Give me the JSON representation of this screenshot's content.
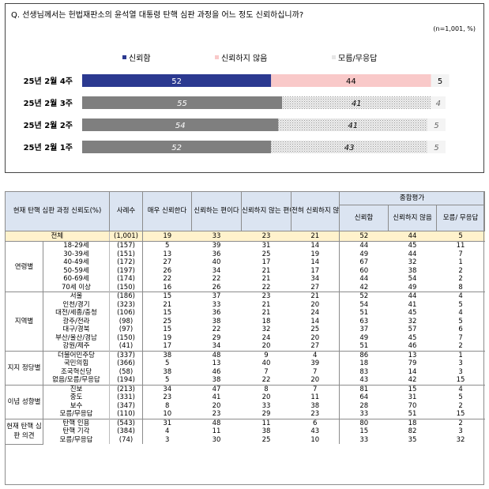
{
  "question": "Q. 선생님께서는 헌법재판소의 윤석열 대통령 탄핵 심판 과정을 어느 정도 신뢰하십니까?",
  "sample_note": "(n=1,001, %)",
  "colors": {
    "trust_current": "#2b3990",
    "distrust_current": "#f9c9c9",
    "unknown_current": "#f3f3f3",
    "trust_past": "#7f7f7f",
    "distrust_past": "#d9d9d9",
    "header_bg": "#dbe4f1",
    "total_bg": "#fff2cc"
  },
  "chart_data": {
    "type": "bar",
    "orientation": "horizontal",
    "stacked": true,
    "categories": [
      "25년 2월 4주",
      "25년 2월 3주",
      "25년 2월 2주",
      "25년 2월 1주"
    ],
    "series": [
      {
        "name": "신뢰함",
        "values": [
          52,
          55,
          54,
          52
        ]
      },
      {
        "name": "신뢰하지 않음",
        "values": [
          44,
          41,
          41,
          43
        ]
      },
      {
        "name": "모름/무응답",
        "values": [
          5,
          4,
          5,
          5
        ]
      }
    ],
    "legend_position": "top",
    "grid": false
  },
  "table": {
    "header": {
      "group": "현재 탄핵 심판 과정 신뢰도(%)",
      "n": "사례수",
      "c1": "매우 신뢰한다",
      "c2": "신뢰하는 편이다",
      "c3": "신뢰하지 않는 편이다",
      "c4": "전혀 신뢰하지 않는다",
      "summary": "종합평가",
      "s1": "신뢰함",
      "s2": "신뢰하지 않음",
      "s3": "모름/ 무응답"
    },
    "total": {
      "label": "전체",
      "n": "(1,001)",
      "v": [
        "19",
        "33",
        "23",
        "21",
        "52",
        "44",
        "5"
      ]
    },
    "groups": [
      {
        "name": "연령별",
        "rows": [
          {
            "label": "18-29세",
            "n": "(157)",
            "v": [
              "5",
              "39",
              "31",
              "14",
              "44",
              "45",
              "11"
            ]
          },
          {
            "label": "30-39세",
            "n": "(151)",
            "v": [
              "13",
              "36",
              "25",
              "19",
              "49",
              "44",
              "7"
            ]
          },
          {
            "label": "40-49세",
            "n": "(172)",
            "v": [
              "27",
              "40",
              "17",
              "14",
              "67",
              "32",
              "1"
            ]
          },
          {
            "label": "50-59세",
            "n": "(197)",
            "v": [
              "26",
              "34",
              "21",
              "17",
              "60",
              "38",
              "2"
            ]
          },
          {
            "label": "60-69세",
            "n": "(174)",
            "v": [
              "22",
              "22",
              "21",
              "34",
              "44",
              "54",
              "2"
            ]
          },
          {
            "label": "70세 이상",
            "n": "(150)",
            "v": [
              "16",
              "26",
              "22",
              "27",
              "42",
              "49",
              "8"
            ]
          }
        ]
      },
      {
        "name": "지역별",
        "rows": [
          {
            "label": "서울",
            "n": "(186)",
            "v": [
              "15",
              "37",
              "23",
              "21",
              "52",
              "44",
              "4"
            ]
          },
          {
            "label": "인천/경기",
            "n": "(323)",
            "v": [
              "21",
              "33",
              "21",
              "20",
              "54",
              "41",
              "5"
            ]
          },
          {
            "label": "대전/세종/충청",
            "n": "(106)",
            "v": [
              "15",
              "36",
              "21",
              "24",
              "51",
              "45",
              "4"
            ]
          },
          {
            "label": "광주/전라",
            "n": "(98)",
            "v": [
              "25",
              "38",
              "18",
              "14",
              "63",
              "32",
              "5"
            ]
          },
          {
            "label": "대구/경북",
            "n": "(97)",
            "v": [
              "15",
              "22",
              "32",
              "25",
              "37",
              "57",
              "6"
            ]
          },
          {
            "label": "부산/울산/경남",
            "n": "(150)",
            "v": [
              "19",
              "29",
              "24",
              "20",
              "49",
              "45",
              "7"
            ]
          },
          {
            "label": "강원/제주",
            "n": "(41)",
            "v": [
              "17",
              "34",
              "20",
              "27",
              "51",
              "46",
              "2"
            ]
          }
        ]
      },
      {
        "name": "지지 정당별",
        "rows": [
          {
            "label": "더불어민주당",
            "n": "(337)",
            "v": [
              "38",
              "48",
              "9",
              "4",
              "86",
              "13",
              "1"
            ]
          },
          {
            "label": "국민의힘",
            "n": "(366)",
            "v": [
              "5",
              "13",
              "40",
              "39",
              "18",
              "79",
              "3"
            ]
          },
          {
            "label": "조국혁신당",
            "n": "(58)",
            "v": [
              "38",
              "46",
              "7",
              "7",
              "83",
              "14",
              "3"
            ]
          },
          {
            "label": "없음/모름/무응답",
            "n": "(194)",
            "v": [
              "5",
              "38",
              "22",
              "20",
              "43",
              "42",
              "15"
            ]
          }
        ]
      },
      {
        "name": "이념 성향별",
        "rows": [
          {
            "label": "진보",
            "n": "(213)",
            "v": [
              "34",
              "47",
              "8",
              "7",
              "81",
              "15",
              "4"
            ]
          },
          {
            "label": "중도",
            "n": "(331)",
            "v": [
              "23",
              "41",
              "20",
              "11",
              "64",
              "31",
              "5"
            ]
          },
          {
            "label": "보수",
            "n": "(347)",
            "v": [
              "8",
              "20",
              "33",
              "38",
              "28",
              "70",
              "2"
            ]
          },
          {
            "label": "모름/무응답",
            "n": "(110)",
            "v": [
              "10",
              "23",
              "29",
              "23",
              "33",
              "51",
              "15"
            ]
          }
        ]
      },
      {
        "name": "헌재 탄핵 심판 의견",
        "rows": [
          {
            "label": "탄핵 인용",
            "n": "(543)",
            "v": [
              "31",
              "48",
              "11",
              "6",
              "80",
              "18",
              "2"
            ]
          },
          {
            "label": "탄핵 기각",
            "n": "(384)",
            "v": [
              "4",
              "11",
              "38",
              "43",
              "15",
              "82",
              "3"
            ]
          },
          {
            "label": "모름/무응답",
            "n": "(74)",
            "v": [
              "3",
              "30",
              "25",
              "10",
              "33",
              "35",
              "32"
            ]
          }
        ]
      }
    ]
  }
}
